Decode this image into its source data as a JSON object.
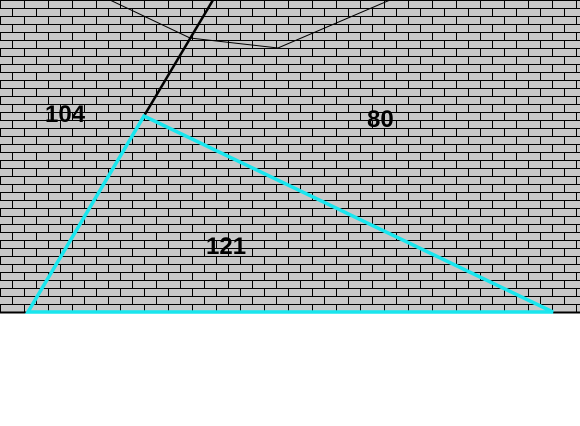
{
  "labels": {
    "area_left": "104",
    "area_right": "80",
    "area_triangle": "121"
  },
  "colors": {
    "brick_fill": "#c8c8c8",
    "mortar": "#000000",
    "triangle_stroke": "#19e6ee",
    "line": "#000000",
    "background": "#ffffff"
  },
  "pattern": "brick-wall"
}
